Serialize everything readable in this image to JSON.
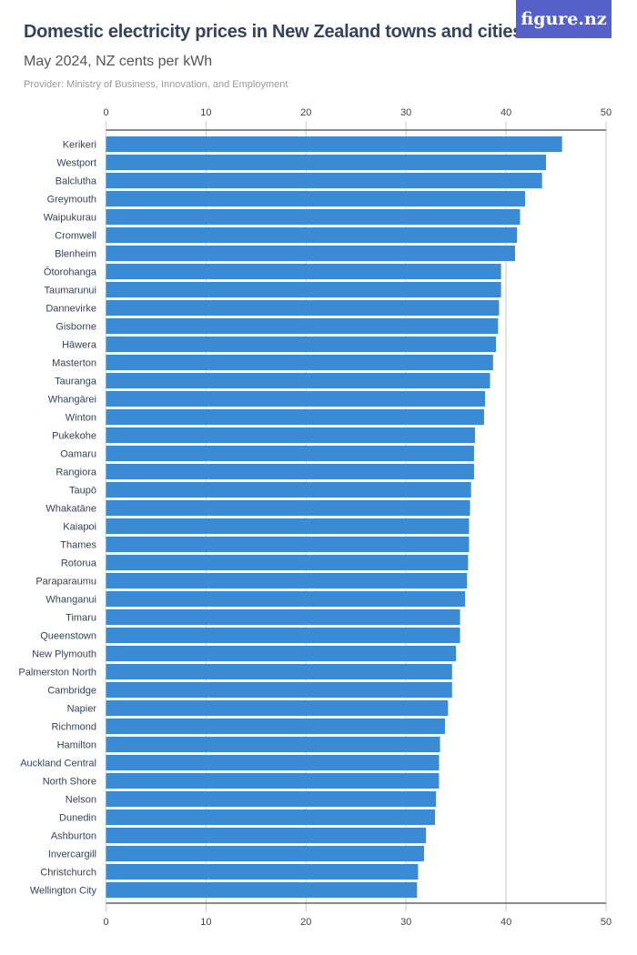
{
  "header": {
    "title": "Domestic electricity prices in New Zealand towns and cities",
    "subtitle": "May 2024, NZ cents per kWh",
    "provider": "Provider: Ministry of Business, Innovation, and Employment",
    "logo": "figure.nz"
  },
  "chart_data": {
    "type": "bar",
    "orientation": "horizontal",
    "title": "Domestic electricity prices in New Zealand towns and cities",
    "xlabel": "NZ cents per kWh",
    "xlim": [
      0,
      50
    ],
    "ticks": [
      0,
      10,
      20,
      30,
      40,
      50
    ],
    "grid": true,
    "bar_color": "#3a8ad4",
    "categories": [
      "Kerikeri",
      "Westport",
      "Balclutha",
      "Greymouth",
      "Waipukurau",
      "Cromwell",
      "Blenheim",
      "Ōtorohanga",
      "Taumarunui",
      "Dannevirke",
      "Gisborne",
      "Hāwera",
      "Masterton",
      "Tauranga",
      "Whangārei",
      "Winton",
      "Pukekohe",
      "Oamaru",
      "Rangiora",
      "Taupō",
      "Whakatāne",
      "Kaiapoi",
      "Thames",
      "Rotorua",
      "Paraparaumu",
      "Whanganui",
      "Timaru",
      "Queenstown",
      "New Plymouth",
      "Palmerston North",
      "Cambridge",
      "Napier",
      "Richmond",
      "Hamilton",
      "Auckland Central",
      "North Shore",
      "Nelson",
      "Dunedin",
      "Ashburton",
      "Invercargill",
      "Christchurch",
      "Wellington City"
    ],
    "values": [
      45.6,
      44.0,
      43.6,
      41.9,
      41.4,
      41.1,
      40.9,
      39.5,
      39.5,
      39.3,
      39.2,
      39.0,
      38.7,
      38.4,
      37.9,
      37.8,
      36.9,
      36.8,
      36.8,
      36.5,
      36.4,
      36.3,
      36.3,
      36.2,
      36.1,
      35.9,
      35.4,
      35.4,
      35.0,
      34.6,
      34.6,
      34.2,
      33.9,
      33.4,
      33.3,
      33.3,
      33.0,
      32.9,
      32.0,
      31.8,
      31.2,
      31.1
    ]
  }
}
